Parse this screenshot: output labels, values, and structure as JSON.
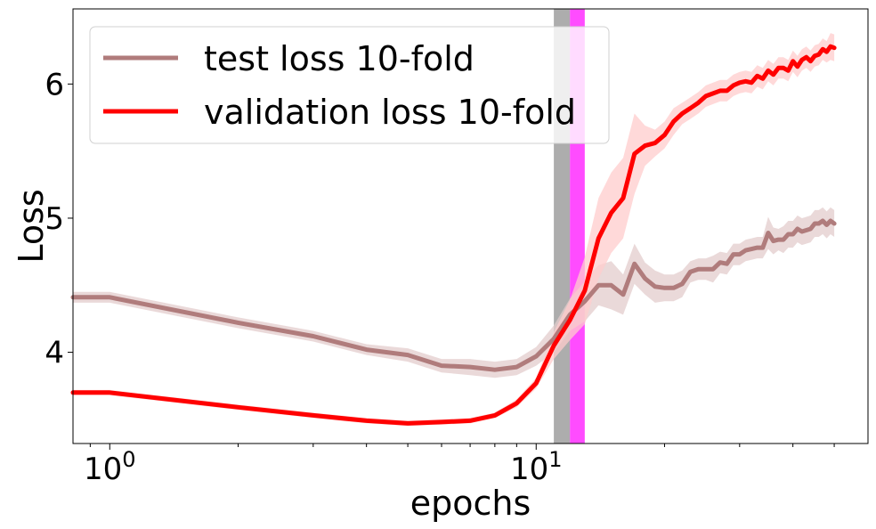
{
  "chart_data": {
    "type": "line",
    "xscale": "log",
    "xlabel": "epochs",
    "ylabel": "Loss",
    "xlim": [
      0.82,
      60
    ],
    "ylim": [
      3.32,
      6.56
    ],
    "yticks": [
      4,
      5,
      6
    ],
    "ytick_labels": [
      "4",
      "5",
      "6"
    ],
    "xticks": [
      {
        "value": 1,
        "base": "10",
        "exp": "0"
      },
      {
        "value": 10,
        "base": "10",
        "exp": "1"
      }
    ],
    "grid": false,
    "legend_position": "upper-left",
    "bands": [
      {
        "x0": 11,
        "x1": 12,
        "color": "#a9a9a9"
      },
      {
        "x0": 12,
        "x1": 13,
        "color": "#ff00ff"
      }
    ],
    "series": [
      {
        "name": "test loss 10-fold",
        "color": "#b07c7c",
        "band_color": "#e3cccc",
        "x": [
          0.82,
          1,
          2,
          3,
          4,
          5,
          6,
          7,
          8,
          9,
          10,
          11,
          12,
          13,
          14,
          15,
          16,
          17,
          18,
          19,
          20,
          21,
          22,
          23,
          24,
          25,
          26,
          27,
          28,
          29,
          30,
          31,
          32,
          33,
          34,
          35,
          36,
          37,
          38,
          39,
          40,
          41,
          42,
          43,
          44,
          45,
          46,
          47,
          48,
          49,
          50
        ],
        "y": [
          4.41,
          4.41,
          4.22,
          4.12,
          4.02,
          3.98,
          3.9,
          3.89,
          3.87,
          3.89,
          3.97,
          4.1,
          4.28,
          4.38,
          4.5,
          4.5,
          4.43,
          4.66,
          4.55,
          4.49,
          4.48,
          4.48,
          4.51,
          4.6,
          4.62,
          4.62,
          4.62,
          4.67,
          4.66,
          4.73,
          4.73,
          4.76,
          4.77,
          4.78,
          4.78,
          4.89,
          4.83,
          4.84,
          4.84,
          4.88,
          4.88,
          4.92,
          4.9,
          4.91,
          4.92,
          4.96,
          4.96,
          4.98,
          4.95,
          4.98,
          4.96
        ],
        "spread": [
          0.04,
          0.04,
          0.04,
          0.04,
          0.04,
          0.05,
          0.05,
          0.06,
          0.06,
          0.06,
          0.07,
          0.1,
          0.12,
          0.15,
          0.15,
          0.18,
          0.15,
          0.15,
          0.12,
          0.12,
          0.1,
          0.1,
          0.1,
          0.08,
          0.08,
          0.08,
          0.1,
          0.08,
          0.08,
          0.08,
          0.08,
          0.08,
          0.08,
          0.08,
          0.08,
          0.12,
          0.1,
          0.08,
          0.1,
          0.1,
          0.1,
          0.1,
          0.1,
          0.1,
          0.1,
          0.1,
          0.1,
          0.1,
          0.1,
          0.1,
          0.1
        ]
      },
      {
        "name": "validation loss 10-fold",
        "color": "#ff0000",
        "band_color": "#ffcccc",
        "x": [
          0.82,
          1,
          2,
          3,
          4,
          5,
          6,
          7,
          8,
          9,
          10,
          11,
          12,
          13,
          14,
          15,
          16,
          17,
          18,
          19,
          20,
          21,
          22,
          23,
          24,
          25,
          26,
          27,
          28,
          29,
          30,
          31,
          32,
          33,
          34,
          35,
          36,
          37,
          38,
          39,
          40,
          41,
          42,
          43,
          44,
          45,
          46,
          47,
          48,
          49,
          50
        ],
        "y": [
          3.7,
          3.7,
          3.59,
          3.53,
          3.49,
          3.47,
          3.48,
          3.49,
          3.53,
          3.62,
          3.77,
          4.05,
          4.24,
          4.46,
          4.85,
          5.04,
          5.15,
          5.48,
          5.54,
          5.56,
          5.62,
          5.72,
          5.78,
          5.82,
          5.86,
          5.91,
          5.93,
          5.95,
          5.95,
          5.99,
          6.01,
          6.02,
          6.01,
          6.06,
          6.04,
          6.1,
          6.07,
          6.12,
          6.12,
          6.1,
          6.17,
          6.13,
          6.18,
          6.2,
          6.17,
          6.21,
          6.22,
          6.26,
          6.24,
          6.28,
          6.27
        ],
        "spread": [
          0.02,
          0.02,
          0.02,
          0.02,
          0.02,
          0.02,
          0.02,
          0.02,
          0.02,
          0.03,
          0.04,
          0.1,
          0.15,
          0.25,
          0.3,
          0.3,
          0.3,
          0.3,
          0.15,
          0.1,
          0.1,
          0.1,
          0.08,
          0.08,
          0.08,
          0.08,
          0.08,
          0.08,
          0.08,
          0.08,
          0.08,
          0.08,
          0.08,
          0.08,
          0.08,
          0.08,
          0.08,
          0.08,
          0.08,
          0.08,
          0.08,
          0.08,
          0.08,
          0.08,
          0.08,
          0.08,
          0.08,
          0.08,
          0.08,
          0.1,
          0.1
        ]
      }
    ]
  }
}
